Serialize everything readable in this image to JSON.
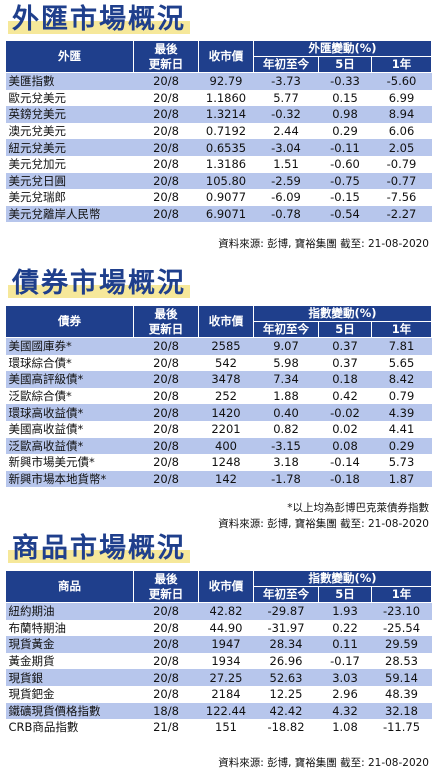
{
  "fx": {
    "title": "外匯市場概況",
    "headers": {
      "name": "外匯",
      "date_line1": "最後",
      "date_line2": "更新日",
      "price": "收市價",
      "change": "外匯變動(%)",
      "ytd": "年初至今",
      "d5": "5日",
      "y1": "1年"
    },
    "rows": [
      {
        "name": "美匯指數",
        "date": "20/8",
        "price": "92.79",
        "ytd": "-3.73",
        "d5": "-0.33",
        "y1": "-5.60"
      },
      {
        "name": "歐元兌美元",
        "date": "20/8",
        "price": "1.1860",
        "ytd": "5.77",
        "d5": "0.15",
        "y1": "6.99"
      },
      {
        "name": "英鎊兌美元",
        "date": "20/8",
        "price": "1.3214",
        "ytd": "-0.32",
        "d5": "0.98",
        "y1": "8.94"
      },
      {
        "name": "澳元兌美元",
        "date": "20/8",
        "price": "0.7192",
        "ytd": "2.44",
        "d5": "0.29",
        "y1": "6.06"
      },
      {
        "name": "紐元兌美元",
        "date": "20/8",
        "price": "0.6535",
        "ytd": "-3.04",
        "d5": "-0.11",
        "y1": "2.05"
      },
      {
        "name": "美元兌加元",
        "date": "20/8",
        "price": "1.3186",
        "ytd": "1.51",
        "d5": "-0.60",
        "y1": "-0.79"
      },
      {
        "name": "美元兌日圓",
        "date": "20/8",
        "price": "105.80",
        "ytd": "-2.59",
        "d5": "-0.75",
        "y1": "-0.77"
      },
      {
        "name": "美元兌瑞郎",
        "date": "20/8",
        "price": "0.9077",
        "ytd": "-6.09",
        "d5": "-0.15",
        "y1": "-7.56"
      },
      {
        "name": "美元兌離岸人民幣",
        "date": "20/8",
        "price": "6.9071",
        "ytd": "-0.78",
        "d5": "-0.54",
        "y1": "-2.27"
      }
    ],
    "source": "資料來源: 彭博, 寶裕集團 截至: 21-08-2020"
  },
  "bond": {
    "title": "債券市場概況",
    "headers": {
      "name": "債券",
      "date_line1": "最後",
      "date_line2": "更新日",
      "price": "收市價",
      "change": "指數變動(%)",
      "ytd": "年初至今",
      "d5": "5日",
      "y1": "1年"
    },
    "rows": [
      {
        "name": "美國國庫券*",
        "date": "20/8",
        "price": "2585",
        "ytd": "9.07",
        "d5": "0.37",
        "y1": "7.81"
      },
      {
        "name": "環球綜合債*",
        "date": "20/8",
        "price": "542",
        "ytd": "5.98",
        "d5": "0.37",
        "y1": "5.65"
      },
      {
        "name": "美國高評級債*",
        "date": "20/8",
        "price": "3478",
        "ytd": "7.34",
        "d5": "0.18",
        "y1": "8.42"
      },
      {
        "name": "泛歐綜合債*",
        "date": "20/8",
        "price": "252",
        "ytd": "1.88",
        "d5": "0.42",
        "y1": "0.79"
      },
      {
        "name": "環球高收益債*",
        "date": "20/8",
        "price": "1420",
        "ytd": "0.40",
        "d5": "-0.02",
        "y1": "4.39"
      },
      {
        "name": "美國高收益債*",
        "date": "20/8",
        "price": "2201",
        "ytd": "0.82",
        "d5": "0.02",
        "y1": "4.41"
      },
      {
        "name": "泛歐高收益債*",
        "date": "20/8",
        "price": "400",
        "ytd": "-3.15",
        "d5": "0.08",
        "y1": "0.29"
      },
      {
        "name": "新興市場美元債*",
        "date": "20/8",
        "price": "1248",
        "ytd": "3.18",
        "d5": "-0.14",
        "y1": "5.73"
      },
      {
        "name": "新興市場本地貨幣*",
        "date": "20/8",
        "price": "142",
        "ytd": "-1.78",
        "d5": "-0.18",
        "y1": "1.87"
      }
    ],
    "note": "*以上均為彭博巴克萊債券指數",
    "source": "資料來源: 彭博, 寶裕集團 截至: 21-08-2020"
  },
  "commodity": {
    "title": "商品市場概況",
    "headers": {
      "name": "商品",
      "date_line1": "最後",
      "date_line2": "更新日",
      "price": "收市價",
      "change": "指數變動(%)",
      "ytd": "年初至今",
      "d5": "5日",
      "y1": "1年"
    },
    "rows": [
      {
        "name": "紐約期油",
        "date": "20/8",
        "price": "42.82",
        "ytd": "-29.87",
        "d5": "1.93",
        "y1": "-23.10"
      },
      {
        "name": "布蘭特期油",
        "date": "20/8",
        "price": "44.90",
        "ytd": "-31.97",
        "d5": "0.22",
        "y1": "-25.54"
      },
      {
        "name": "現貨黃金",
        "date": "20/8",
        "price": "1947",
        "ytd": "28.34",
        "d5": "0.11",
        "y1": "29.59"
      },
      {
        "name": "黃金期貨",
        "date": "20/8",
        "price": "1934",
        "ytd": "26.96",
        "d5": "-0.17",
        "y1": "28.53"
      },
      {
        "name": "現貨銀",
        "date": "20/8",
        "price": "27.25",
        "ytd": "52.63",
        "d5": "3.03",
        "y1": "59.14"
      },
      {
        "name": "現貨鈀金",
        "date": "20/8",
        "price": "2184",
        "ytd": "12.25",
        "d5": "2.96",
        "y1": "48.39"
      },
      {
        "name": "鐵礦現貨價格指數",
        "date": "18/8",
        "price": "122.44",
        "ytd": "42.42",
        "d5": "4.32",
        "y1": "32.18"
      },
      {
        "name": "CRB商品指數",
        "date": "21/8",
        "price": "151",
        "ytd": "-18.82",
        "d5": "1.08",
        "y1": "-11.75"
      }
    ],
    "source": "資料來源: 彭博, 寶裕集團 截至: 21-08-2020"
  }
}
